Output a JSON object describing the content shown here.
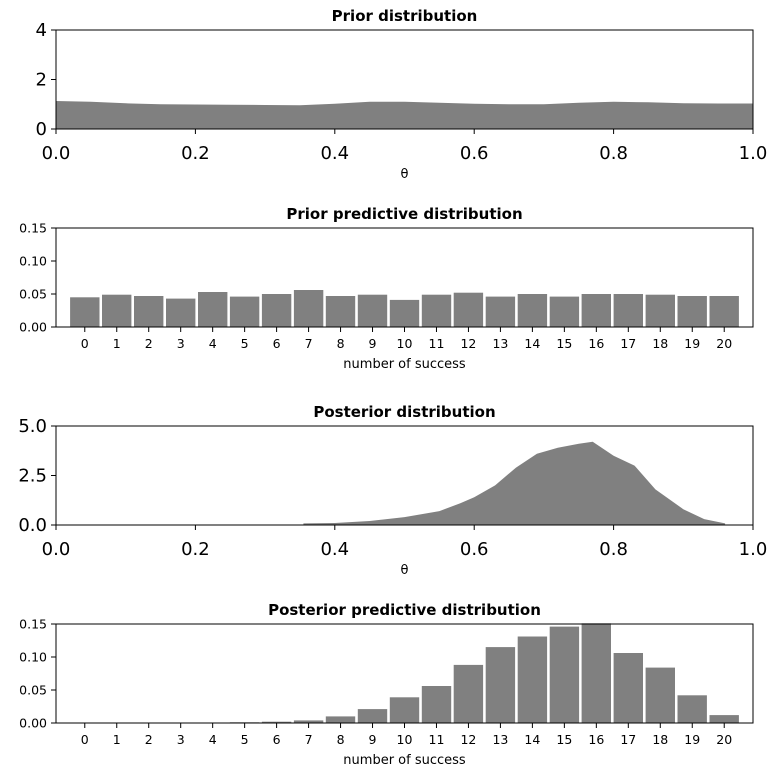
{
  "chart_data": [
    {
      "type": "area",
      "title": "Prior distribution",
      "xlabel": "θ",
      "ylabel": "",
      "xlim": [
        0,
        1
      ],
      "ylim": [
        0,
        4
      ],
      "xticks": [
        "0.0",
        "0.2",
        "0.4",
        "0.6",
        "0.8",
        "1.0"
      ],
      "yticks": [
        "0",
        "2",
        "4"
      ],
      "color": "#808080",
      "x": [
        0.0,
        0.05,
        0.1,
        0.15,
        0.2,
        0.25,
        0.3,
        0.35,
        0.4,
        0.45,
        0.5,
        0.55,
        0.6,
        0.65,
        0.7,
        0.75,
        0.8,
        0.85,
        0.9,
        0.95,
        1.0
      ],
      "y": [
        1.13,
        1.1,
        1.04,
        1.0,
        0.99,
        0.98,
        0.97,
        0.96,
        1.02,
        1.1,
        1.1,
        1.06,
        1.02,
        1.0,
        1.0,
        1.06,
        1.1,
        1.08,
        1.04,
        1.03,
        1.03
      ]
    },
    {
      "type": "bar",
      "title": "Prior predictive distribution",
      "xlabel": "number of success",
      "ylabel": "",
      "ylim": [
        0,
        0.15
      ],
      "yticks": [
        "0.00",
        "0.05",
        "0.10",
        "0.15"
      ],
      "color": "#808080",
      "categories": [
        "0",
        "1",
        "2",
        "3",
        "4",
        "5",
        "6",
        "7",
        "8",
        "9",
        "10",
        "11",
        "12",
        "13",
        "14",
        "15",
        "16",
        "17",
        "18",
        "19",
        "20"
      ],
      "values": [
        0.045,
        0.049,
        0.047,
        0.043,
        0.053,
        0.046,
        0.05,
        0.056,
        0.047,
        0.049,
        0.041,
        0.049,
        0.052,
        0.046,
        0.05,
        0.046,
        0.05,
        0.05,
        0.049,
        0.047,
        0.047
      ]
    },
    {
      "type": "area",
      "title": "Posterior distribution",
      "xlabel": "θ",
      "ylabel": "",
      "xlim": [
        0,
        1
      ],
      "ylim": [
        0,
        5
      ],
      "xticks": [
        "0.0",
        "0.2",
        "0.4",
        "0.6",
        "0.8",
        "1.0"
      ],
      "yticks": [
        "0.0",
        "2.5",
        "5.0"
      ],
      "color": "#808080",
      "x": [
        0.355,
        0.4,
        0.45,
        0.5,
        0.55,
        0.58,
        0.6,
        0.63,
        0.66,
        0.69,
        0.72,
        0.75,
        0.77,
        0.8,
        0.83,
        0.86,
        0.9,
        0.93,
        0.96
      ],
      "y": [
        0.08,
        0.1,
        0.2,
        0.4,
        0.7,
        1.1,
        1.4,
        2.0,
        2.9,
        3.6,
        3.9,
        4.1,
        4.2,
        3.5,
        3.0,
        1.8,
        0.8,
        0.3,
        0.08
      ]
    },
    {
      "type": "bar",
      "title": "Posterior predictive distribution",
      "xlabel": "number of success",
      "ylabel": "",
      "ylim": [
        0,
        0.15
      ],
      "yticks": [
        "0.00",
        "0.05",
        "0.10",
        "0.15"
      ],
      "color": "#808080",
      "categories": [
        "0",
        "1",
        "2",
        "3",
        "4",
        "5",
        "6",
        "7",
        "8",
        "9",
        "10",
        "11",
        "12",
        "13",
        "14",
        "15",
        "16",
        "17",
        "18",
        "19",
        "20"
      ],
      "values": [
        0.0,
        0.0,
        0.0,
        0.0,
        0.0,
        0.001,
        0.002,
        0.004,
        0.01,
        0.021,
        0.039,
        0.056,
        0.088,
        0.115,
        0.131,
        0.146,
        0.151,
        0.106,
        0.084,
        0.042,
        0.012
      ]
    }
  ]
}
